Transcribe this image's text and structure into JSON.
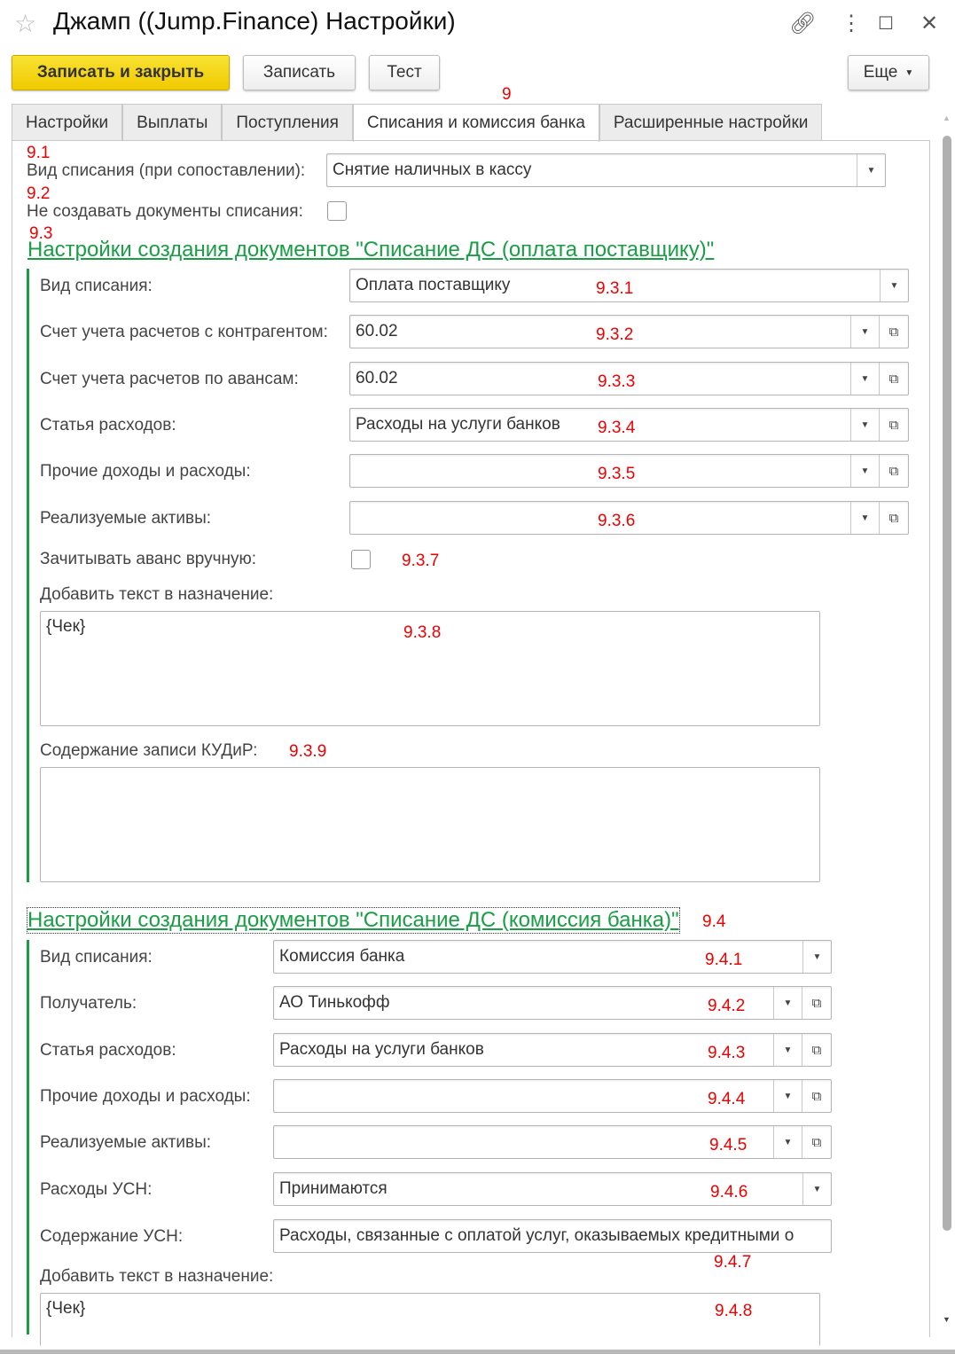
{
  "window": {
    "title": "Джамп ((Jump.Finance) Настройки)",
    "icons": [
      "star-icon",
      "link-icon",
      "more-icon",
      "maximize-icon",
      "close-icon"
    ]
  },
  "toolbar": {
    "save_close": "Записать и закрыть",
    "save": "Записать",
    "test": "Тест",
    "more": "Еще"
  },
  "tabs": [
    {
      "label": "Настройки"
    },
    {
      "label": "Выплаты"
    },
    {
      "label": "Поступления"
    },
    {
      "label": "Списания и комиссия банка",
      "active": true
    },
    {
      "label": "Расширенные настройки"
    }
  ],
  "annotations": {
    "a9": "9",
    "a91": "9.1",
    "a92": "9.2",
    "a93": "9.3",
    "a931": "9.3.1",
    "a932": "9.3.2",
    "a933": "9.3.3",
    "a934": "9.3.4",
    "a935": "9.3.5",
    "a936": "9.3.6",
    "a937": "9.3.7",
    "a938": "9.3.8",
    "a939": "9.3.9",
    "a94": "9.4",
    "a941": "9.4.1",
    "a942": "9.4.2",
    "a943": "9.4.3",
    "a944": "9.4.4",
    "a945": "9.4.5",
    "a946": "9.4.6",
    "a947": "9.4.7",
    "a948": "9.4.8"
  },
  "top": {
    "vid_label": "Вид списания (при сопоставлении):",
    "vid_value": "Снятие наличных в кассу",
    "no_docs_label": "Не создавать документы списания:",
    "no_docs_checked": false
  },
  "s1": {
    "title": "Настройки создания документов \"Списание ДС (оплата поставщику)\"",
    "fields": [
      {
        "label": "Вид списания:",
        "value": "Оплата поставщику"
      },
      {
        "label": "Счет учета расчетов с контрагентом:",
        "value": "60.02"
      },
      {
        "label": "Счет учета расчетов по авансам:",
        "value": "60.02"
      },
      {
        "label": "Статья расходов:",
        "value": "Расходы на услуги банков"
      },
      {
        "label": "Прочие доходы и расходы:",
        "value": ""
      },
      {
        "label": "Реализуемые активы:",
        "value": ""
      }
    ],
    "advance_label": "Зачитывать аванс вручную:",
    "advance_checked": false,
    "purpose_label": "Добавить текст в назначение:",
    "purpose_value": "{Чек}",
    "kudir_label": "Содержание записи КУДиР:",
    "kudir_value": ""
  },
  "s2": {
    "title": "Настройки создания документов \"Списание ДС (комиссия банка)\"",
    "fields": [
      {
        "label": "Вид списания:",
        "value": "Комиссия банка"
      },
      {
        "label": "Получатель:",
        "value": "АО Тинькофф"
      },
      {
        "label": "Статья расходов:",
        "value": "Расходы на услуги банков"
      },
      {
        "label": "Прочие доходы и расходы:",
        "value": ""
      },
      {
        "label": "Реализуемые активы:",
        "value": ""
      },
      {
        "label": "Расходы УСН:",
        "value": "Принимаются"
      },
      {
        "label": "Содержание УСН:",
        "value": "Расходы, связанные с оплатой услуг, оказываемых кредитными о"
      }
    ],
    "purpose_label": "Добавить текст в назначение:",
    "purpose_value": "{Чек}"
  }
}
